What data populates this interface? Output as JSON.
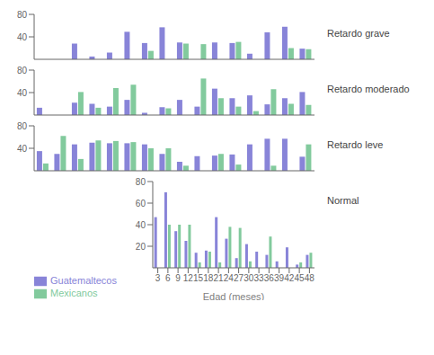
{
  "chart_data": [
    {
      "type": "bar",
      "ylabel": "Retardo grave",
      "categories": [
        "3",
        "6",
        "9",
        "12",
        "15",
        "18",
        "21",
        "24",
        "27",
        "30",
        "33",
        "36",
        "39",
        "42",
        "45",
        "48"
      ],
      "series": [
        {
          "name": "Guatemaltecos",
          "values": [
            0,
            0,
            28,
            5,
            12,
            49,
            29,
            57,
            30,
            0,
            30,
            29,
            10,
            48,
            58,
            19
          ]
        },
        {
          "name": "Mexicanos",
          "values": [
            0,
            0,
            0,
            0,
            0,
            0,
            15,
            0,
            28,
            27,
            0,
            31,
            0,
            0,
            20,
            18
          ]
        }
      ],
      "ylim": [
        0,
        80
      ],
      "yticks": [
        20,
        40,
        60,
        80
      ],
      "tick_labels": "y"
    },
    {
      "type": "bar",
      "ylabel": "Retardo moderado",
      "categories": [
        "3",
        "6",
        "9",
        "12",
        "15",
        "18",
        "21",
        "24",
        "27",
        "30",
        "33",
        "36",
        "39",
        "42",
        "45",
        "48"
      ],
      "series": [
        {
          "name": "Guatemaltecos",
          "values": [
            13,
            0,
            22,
            20,
            15,
            27,
            4,
            14,
            27,
            15,
            47,
            30,
            35,
            19,
            30,
            41
          ]
        },
        {
          "name": "Mexicanos",
          "values": [
            0,
            0,
            41,
            13,
            48,
            54,
            0,
            12,
            0,
            65,
            30,
            15,
            7,
            46,
            20,
            18
          ]
        }
      ],
      "ylim": [
        0,
        80
      ],
      "yticks": [
        20,
        40,
        60,
        80
      ],
      "tick_labels": "y"
    },
    {
      "type": "bar",
      "ylabel": "Retardo leve",
      "categories": [
        "3",
        "6",
        "9",
        "12",
        "15",
        "18",
        "21",
        "24",
        "27",
        "30",
        "33",
        "36",
        "39",
        "42",
        "45",
        "48"
      ],
      "series": [
        {
          "name": "Guatemaltecos",
          "values": [
            35,
            30,
            47,
            50,
            49,
            49,
            47,
            30,
            16,
            26,
            27,
            29,
            47,
            57,
            57,
            25
          ]
        },
        {
          "name": "Mexicanos",
          "values": [
            13,
            62,
            21,
            54,
            53,
            51,
            40,
            40,
            9,
            0,
            30,
            11,
            0,
            9,
            0,
            47
          ]
        }
      ],
      "ylim": [
        0,
        80
      ],
      "yticks": [
        20,
        40,
        60,
        80
      ],
      "tick_labels": "y"
    },
    {
      "type": "bar",
      "ylabel": "Normal",
      "xlabel": "Edad (meses)",
      "categories": [
        "3",
        "6",
        "9",
        "12",
        "15",
        "18",
        "21",
        "24",
        "27",
        "30",
        "33",
        "36",
        "39",
        "42",
        "45",
        "48"
      ],
      "series": [
        {
          "name": "Guatemaltecos",
          "values": [
            47,
            70,
            34,
            25,
            14,
            16,
            47,
            27,
            9,
            22,
            15,
            12,
            6,
            19,
            3,
            12
          ]
        },
        {
          "name": "Mexicanos",
          "values": [
            0,
            40,
            40,
            40,
            5,
            15,
            5,
            38,
            37,
            6,
            0,
            29,
            0,
            0,
            5,
            14
          ]
        }
      ],
      "ylim": [
        0,
        80
      ],
      "yticks": [
        20,
        40,
        60,
        80
      ],
      "legend": "lower left"
    }
  ]
}
